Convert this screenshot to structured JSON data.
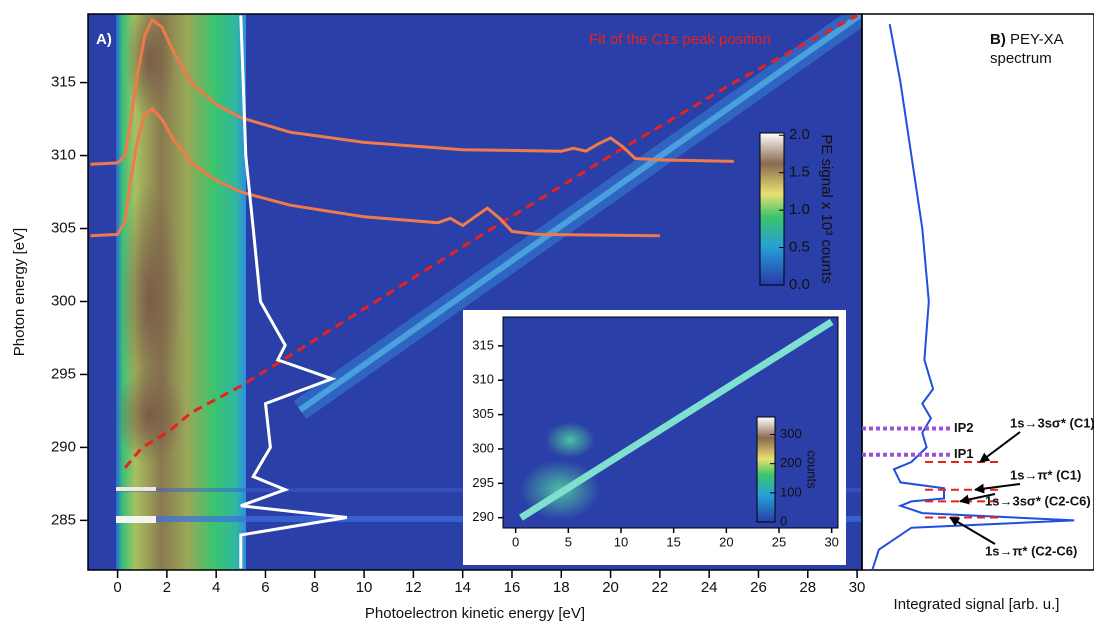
{
  "chart_data": [
    {
      "type": "heatmap",
      "panel_label": "A)",
      "xlabel": "Photoelectron kinetic energy [eV]",
      "ylabel": "Photon energy [eV]",
      "xlim": [
        -1.2,
        30.2
      ],
      "ylim": [
        281.6,
        319.7
      ],
      "xticks": [
        0,
        2,
        4,
        6,
        8,
        10,
        12,
        14,
        16,
        18,
        20,
        22,
        24,
        26,
        28,
        30
      ],
      "yticks": [
        285,
        290,
        295,
        300,
        305,
        310,
        315
      ],
      "colorbar": {
        "label": "PE signal x 10³ counts",
        "lim": [
          0,
          2.03
        ],
        "ticks": [
          {
            "value": 0,
            "label": "0.0"
          },
          {
            "value": 0.5,
            "label": "0.5"
          },
          {
            "value": 1,
            "label": "1.0"
          },
          {
            "value": 1.5,
            "label": "1.5"
          },
          {
            "value": 2,
            "label": "2.0"
          }
        ]
      },
      "series": [
        {
          "name": "Fit of the C1s peak position",
          "color": "#e8211c",
          "dashed": true,
          "x": [
            0.3,
            1,
            2,
            3,
            5,
            7,
            10,
            15,
            20,
            25,
            30
          ],
          "values": [
            288.6,
            290,
            291,
            292.4,
            294.2,
            296.3,
            299.5,
            304.8,
            310,
            315,
            319.6
          ]
        },
        {
          "color": "#f07a4a",
          "x": [
            -1.1,
            0,
            0.3,
            0.5,
            0.8,
            1.1,
            1.4,
            1.8,
            2.3,
            3,
            4,
            5,
            7,
            10,
            14,
            18,
            18.5,
            19,
            19.5,
            20,
            20.5,
            21,
            22,
            25
          ],
          "values": [
            309.4,
            309.5,
            310,
            312,
            315.5,
            318.2,
            319.3,
            318.8,
            317,
            315,
            313.5,
            312.6,
            311.6,
            310.9,
            310.4,
            310.3,
            310.5,
            310.3,
            310.8,
            311.2,
            310.6,
            309.8,
            309.7,
            309.6
          ]
        },
        {
          "color": "#f07a4a",
          "x": [
            -1.1,
            0,
            0.3,
            0.5,
            0.8,
            1.1,
            1.4,
            1.8,
            2.3,
            3,
            4,
            5,
            7,
            10,
            13,
            13.5,
            14,
            14.5,
            15,
            15.5,
            16,
            17,
            22
          ],
          "values": [
            304.5,
            304.6,
            305.5,
            308,
            311,
            312.8,
            313.2,
            312.5,
            311,
            309.5,
            308.3,
            307.5,
            306.6,
            305.8,
            305.4,
            305.7,
            305.2,
            305.8,
            306.4,
            305.7,
            304.8,
            304.6,
            304.5
          ]
        },
        {
          "color": "#ffffff",
          "x": [
            5,
            5,
            9.3,
            5,
            6.8,
            5.5,
            6.2,
            6,
            8.7,
            6.5,
            6.8,
            5.8,
            5.5,
            5.2,
            5
          ],
          "values": [
            281.7,
            284,
            285.2,
            286,
            287.1,
            288,
            290,
            293,
            294.7,
            296,
            297,
            300,
            305,
            310,
            319.6
          ]
        }
      ]
    },
    {
      "type": "heatmap",
      "xlim": [
        -1.2,
        30.6
      ],
      "ylim": [
        288.5,
        319.2
      ],
      "xticks": [
        0,
        5,
        10,
        15,
        20,
        25,
        30
      ],
      "yticks": [
        290,
        295,
        300,
        305,
        310,
        315
      ],
      "colorbar": {
        "label": "counts",
        "lim": [
          0,
          360
        ],
        "ticks": [
          0,
          100,
          200,
          300
        ]
      },
      "series": [
        {
          "color": "#7fe0d0",
          "x": [
            0.5,
            30
          ],
          "values": [
            290,
            318.5
          ]
        }
      ]
    },
    {
      "type": "line",
      "panel_label": "B)",
      "title": "PEY-XA spectrum",
      "xlabel": "Integrated signal [arb. u.]",
      "xlim": [
        0,
        1
      ],
      "ylim": [
        281.6,
        319.7
      ],
      "series": [
        {
          "color": "#1f4fe0",
          "energies": [
            281.6,
            283,
            284.5,
            285,
            285.5,
            286,
            286.3,
            286.5,
            287.2,
            287.6,
            288.5,
            289,
            290,
            291,
            292,
            293,
            294,
            296,
            300,
            305,
            310,
            315,
            319
          ],
          "values": [
            0.02,
            0.05,
            0.2,
            0.95,
            0.25,
            0.15,
            0.2,
            0.35,
            0.35,
            0.15,
            0.12,
            0.2,
            0.27,
            0.25,
            0.29,
            0.25,
            0.3,
            0.26,
            0.28,
            0.25,
            0.2,
            0.15,
            0.1
          ]
        }
      ],
      "ip_lines": [
        {
          "label": "IP2",
          "energy": 291.3
        },
        {
          "label": "IP1",
          "energy": 289.5
        }
      ],
      "transitions": [
        {
          "label": "1s→3sσ* (C1)",
          "energy": 289.0
        },
        {
          "label": "1s→π* (C1)",
          "energy": 287.1
        },
        {
          "label": "1s→3sσ* (C2-C6)",
          "energy": 286.3
        },
        {
          "label": "1s→π* (C2-C6)",
          "energy": 285.2
        }
      ]
    }
  ]
}
